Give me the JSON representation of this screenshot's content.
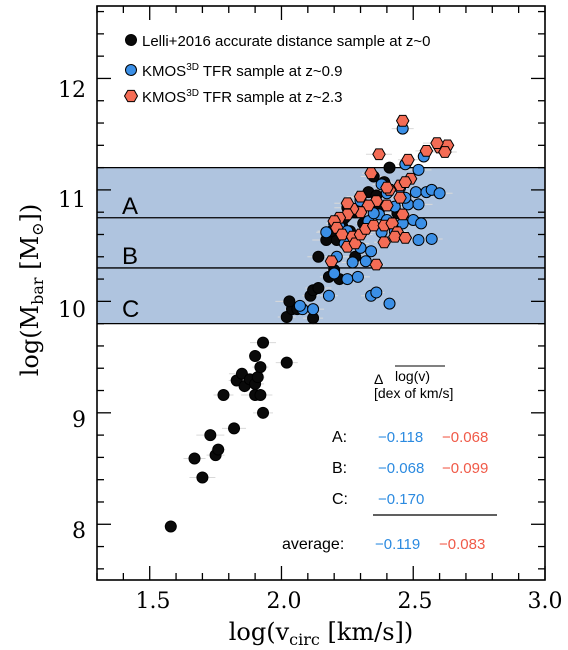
{
  "chart_data": {
    "type": "scatter",
    "xlabel_main": "log(v",
    "xlabel_sub": "circ",
    "xlabel_end": " [km/s])",
    "ylabel_main": "log(M",
    "ylabel_sub": "bar",
    "ylabel_mid": "  [M",
    "ylabel_sym": "⊙",
    "ylabel_end": "])",
    "xlim": [
      1.3,
      3.0
    ],
    "ylim": [
      7.5,
      12.65
    ],
    "xticks": [
      1.5,
      2.0,
      2.5,
      3.0
    ],
    "xtick_labels": [
      "1.5",
      "2.0",
      "2.5",
      "3.0"
    ],
    "yticks": [
      8,
      9,
      10,
      11,
      12
    ],
    "ytick_labels": [
      "8",
      "9",
      "10",
      "11",
      "12"
    ],
    "grid": false,
    "legend_position": "top-left",
    "colors": {
      "band": "#afc4df",
      "lelli": "#0a0a0a",
      "kmos09": "#3b8fe6",
      "kmos23": "#f46c55",
      "blue_text": "#2b8ae0",
      "red_text": "#f05a48"
    },
    "bands": [
      {
        "label": "A",
        "y_min": 10.75,
        "y_max": 11.2
      },
      {
        "label": "B",
        "y_min": 10.3,
        "y_max": 10.75
      },
      {
        "label": "C",
        "y_min": 9.8,
        "y_max": 10.3
      }
    ],
    "legend": [
      {
        "marker": "circle",
        "color": "#0a0a0a",
        "text": "Lelli+2016 accurate distance sample at z~0",
        "sup": "",
        "after": ""
      },
      {
        "marker": "circle",
        "color": "#3b8fe6",
        "text": "KMOS",
        "sup": "3D",
        "after": " TFR sample at z~0.9"
      },
      {
        "marker": "hexagon",
        "color": "#f46c55",
        "text": "KMOS",
        "sup": "3D",
        "after": " TFR sample at z~2.3"
      }
    ],
    "annotation": {
      "delta": "Δ",
      "overline_text": "log(v)",
      "unit": "[dex of km/s]",
      "rows": [
        {
          "label": "A:",
          "blue": "−0.118",
          "red": "−0.068"
        },
        {
          "label": "B:",
          "blue": "−0.068",
          "red": "−0.099"
        },
        {
          "label": "C:",
          "blue": "−0.170",
          "red": ""
        },
        {
          "label": "average:",
          "blue": "−0.119",
          "red": "−0.083"
        }
      ]
    },
    "series": [
      {
        "name": "Lelli+2016 accurate distance sample at z~0",
        "marker": "circle",
        "points": [
          [
            1.58,
            7.98
          ],
          [
            1.7,
            8.42
          ],
          [
            1.67,
            8.59
          ],
          [
            1.75,
            8.62
          ],
          [
            1.76,
            8.67
          ],
          [
            1.73,
            8.8
          ],
          [
            1.82,
            8.86
          ],
          [
            1.78,
            9.16
          ],
          [
            1.83,
            9.29
          ],
          [
            1.86,
            9.24
          ],
          [
            1.85,
            9.35
          ],
          [
            1.88,
            9.3
          ],
          [
            1.9,
            9.26
          ],
          [
            1.91,
            9.32
          ],
          [
            1.9,
            9.16
          ],
          [
            1.92,
            9.16
          ],
          [
            1.93,
            9.0
          ],
          [
            1.92,
            9.41
          ],
          [
            1.9,
            9.51
          ],
          [
            1.93,
            9.63
          ],
          [
            2.02,
            9.45
          ],
          [
            2.02,
            9.86
          ],
          [
            2.04,
            9.93
          ],
          [
            2.03,
            10.0
          ],
          [
            2.06,
            9.93
          ],
          [
            2.12,
            9.85
          ],
          [
            2.11,
            10.05
          ],
          [
            2.12,
            10.1
          ],
          [
            2.14,
            10.12
          ],
          [
            2.14,
            10.4
          ],
          [
            2.18,
            10.22
          ],
          [
            2.2,
            10.28
          ],
          [
            2.17,
            10.55
          ],
          [
            2.21,
            10.55
          ],
          [
            2.23,
            10.68
          ],
          [
            2.26,
            10.63
          ],
          [
            2.24,
            10.75
          ],
          [
            2.25,
            10.84
          ],
          [
            2.28,
            10.8
          ],
          [
            2.3,
            10.93
          ],
          [
            2.31,
            10.7
          ],
          [
            2.33,
            10.98
          ],
          [
            2.36,
            10.95
          ],
          [
            2.37,
            10.82
          ],
          [
            2.39,
            11.07
          ],
          [
            2.41,
            11.2
          ],
          [
            2.35,
            11.12
          ],
          [
            2.44,
            10.79
          ],
          [
            2.22,
            10.2
          ],
          [
            2.28,
            10.4
          ],
          [
            2.19,
            10.63
          ],
          [
            2.32,
            10.86
          ]
        ]
      },
      {
        "name": "KMOS3D TFR sample at z~0.9",
        "marker": "circle",
        "points": [
          [
            2.08,
            9.93
          ],
          [
            2.07,
            9.96
          ],
          [
            2.12,
            9.93
          ],
          [
            2.18,
            10.05
          ],
          [
            2.2,
            10.25
          ],
          [
            2.25,
            10.2
          ],
          [
            2.29,
            10.22
          ],
          [
            2.34,
            10.05
          ],
          [
            2.36,
            10.08
          ],
          [
            2.41,
            9.98
          ],
          [
            2.32,
            10.36
          ],
          [
            2.27,
            10.35
          ],
          [
            2.3,
            10.48
          ],
          [
            2.34,
            10.45
          ],
          [
            2.24,
            10.52
          ],
          [
            2.21,
            10.4
          ],
          [
            2.17,
            10.62
          ],
          [
            2.2,
            10.7
          ],
          [
            2.22,
            10.67
          ],
          [
            2.25,
            10.63
          ],
          [
            2.33,
            10.72
          ],
          [
            2.37,
            10.78
          ],
          [
            2.4,
            10.73
          ],
          [
            2.38,
            10.62
          ],
          [
            2.43,
            10.63
          ],
          [
            2.46,
            10.7
          ],
          [
            2.5,
            10.73
          ],
          [
            2.53,
            10.7
          ],
          [
            2.52,
            10.55
          ],
          [
            2.57,
            10.56
          ],
          [
            2.43,
            10.85
          ],
          [
            2.48,
            10.87
          ],
          [
            2.52,
            10.87
          ],
          [
            2.47,
            10.93
          ],
          [
            2.51,
            10.98
          ],
          [
            2.55,
            10.98
          ],
          [
            2.57,
            11.0
          ],
          [
            2.6,
            10.97
          ],
          [
            2.4,
            10.97
          ],
          [
            2.38,
            11.05
          ],
          [
            2.45,
            11.02
          ],
          [
            2.3,
            10.9
          ],
          [
            2.27,
            10.82
          ],
          [
            2.35,
            10.79
          ],
          [
            2.47,
            11.23
          ],
          [
            2.54,
            11.3
          ],
          [
            2.52,
            11.18
          ],
          [
            2.46,
            11.55
          ]
        ]
      },
      {
        "name": "KMOS3D TFR sample at z~2.3",
        "marker": "hexagon",
        "points": [
          [
            2.46,
            11.62
          ],
          [
            2.37,
            11.32
          ],
          [
            2.55,
            11.35
          ],
          [
            2.6,
            11.38
          ],
          [
            2.63,
            11.4
          ],
          [
            2.59,
            11.42
          ],
          [
            2.62,
            11.34
          ],
          [
            2.48,
            11.27
          ],
          [
            2.45,
            11.04
          ],
          [
            2.49,
            11.1
          ],
          [
            2.41,
            11.0
          ],
          [
            2.45,
            10.93
          ],
          [
            2.36,
            10.9
          ],
          [
            2.33,
            10.86
          ],
          [
            2.3,
            10.8
          ],
          [
            2.27,
            10.83
          ],
          [
            2.25,
            10.78
          ],
          [
            2.22,
            10.75
          ],
          [
            2.2,
            10.72
          ],
          [
            2.21,
            10.66
          ],
          [
            2.23,
            10.6
          ],
          [
            2.27,
            10.58
          ],
          [
            2.25,
            10.49
          ],
          [
            2.28,
            10.52
          ],
          [
            2.3,
            10.6
          ],
          [
            2.32,
            10.65
          ],
          [
            2.35,
            10.68
          ],
          [
            2.39,
            10.68
          ],
          [
            2.42,
            10.7
          ],
          [
            2.46,
            10.78
          ],
          [
            2.44,
            10.62
          ],
          [
            2.43,
            10.58
          ],
          [
            2.47,
            10.57
          ],
          [
            2.4,
            10.86
          ],
          [
            2.39,
            10.53
          ],
          [
            2.36,
            10.33
          ],
          [
            2.19,
            10.36
          ],
          [
            2.25,
            10.88
          ],
          [
            2.4,
            11.02
          ],
          [
            2.34,
            11.15
          ],
          [
            2.47,
            11.07
          ],
          [
            2.3,
            10.94
          ]
        ]
      }
    ]
  }
}
